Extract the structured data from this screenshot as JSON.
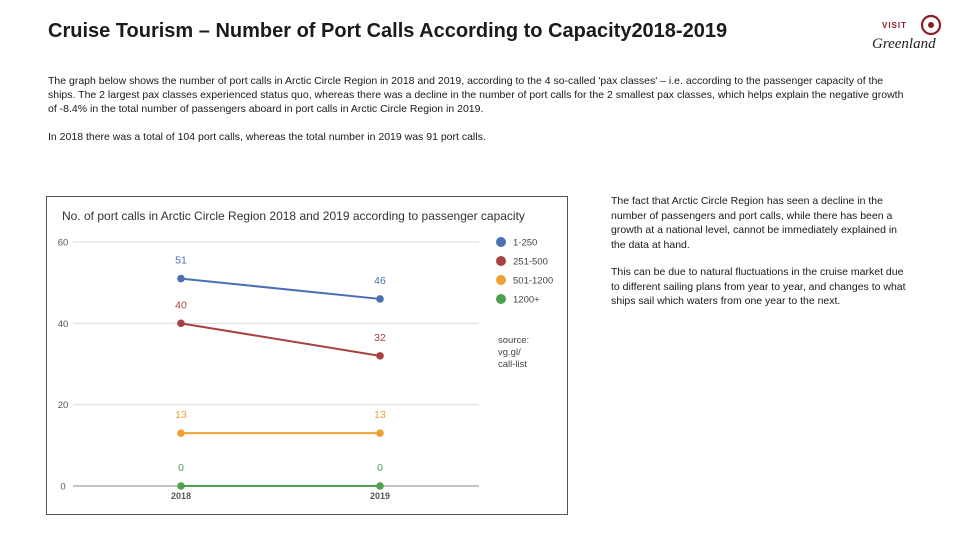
{
  "page": {
    "title": "Cruise Tourism – Number of Port Calls According to Capacity2018-2019",
    "intro": [
      "The graph below shows the number of port calls in Arctic Circle Region in 2018 and 2019, according to the 4 so-called 'pax classes' – i.e. according to the passenger capacity of the ships. The 2 largest pax classes experienced status quo, whereas there was a decline in the number of port calls for the 2 smallest pax classes, which helps explain the negative growth of -8.4% in the total number of passengers aboard in port calls in Arctic Circle Region in 2019.",
      "In 2018 there was a total of 104 port calls, whereas the total number in 2019 was 91 port calls."
    ],
    "side_notes": [
      "The fact that Arctic Circle Region has seen a decline in the number of passengers and port calls, while there has been a growth at a national level, cannot be immediately explained in the data at hand.",
      "This can be due to natural fluctuations in the cruise market due to different sailing plans from year to year, and changes to what ships sail which waters from one year to the next."
    ]
  },
  "logo": {
    "top": "VISIT",
    "script": "Greenland",
    "color": "#8b1e2b"
  },
  "chart_data": {
    "type": "line",
    "title": "No. of port calls in Arctic Circle Region 2018 and 2019 according to passenger capacity",
    "categories": [
      "2018",
      "2019"
    ],
    "ylim": [
      0,
      60
    ],
    "yticks": [
      0,
      20,
      40,
      60
    ],
    "grid": true,
    "legend_position": "right",
    "series": [
      {
        "name": "1-250",
        "values": [
          51,
          46
        ],
        "color": "#4a6fb5"
      },
      {
        "name": "251-500",
        "values": [
          40,
          32
        ],
        "color": "#a84242"
      },
      {
        "name": "501-1200",
        "values": [
          13,
          13
        ],
        "color": "#f0a030"
      },
      {
        "name": "1200+",
        "values": [
          0,
          0
        ],
        "color": "#4fa04f"
      }
    ],
    "source_note": [
      "source:",
      "vg.gl/",
      "call-list"
    ]
  }
}
